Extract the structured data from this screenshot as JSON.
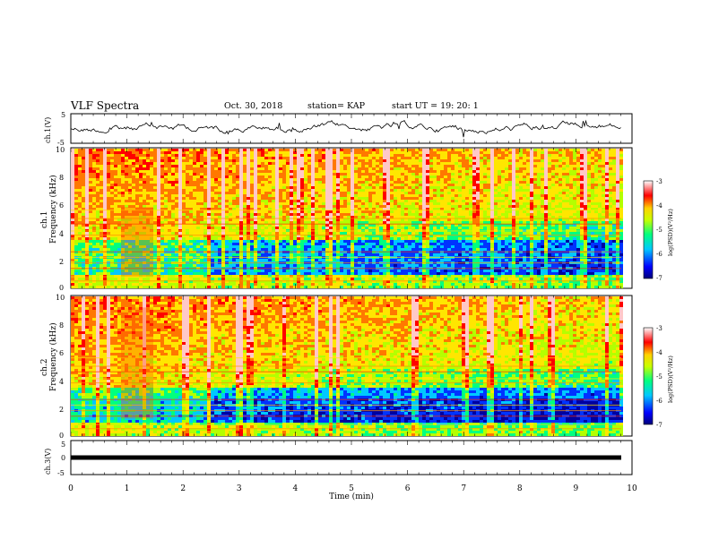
{
  "header": {
    "title": "VLF Spectra",
    "date": "Oct. 30, 2018",
    "station": "station= KAP",
    "start": "start  UT =    19: 20: 1"
  },
  "chart_data": [
    {
      "type": "line",
      "panel": "ch1-waveform",
      "ylabel": "ch.1(V)",
      "ylim": [
        -5,
        5
      ],
      "yticks": [
        "5",
        "-5"
      ],
      "xlim": [
        0,
        10
      ],
      "note_series": "noisy waveform about 0 V spanning the panel"
    },
    {
      "type": "heatmap",
      "panel": "ch1-spectrogram",
      "ylabel": "ch.1\nFrequency (kHz)",
      "xlim": [
        0,
        10
      ],
      "ylim": [
        0,
        10
      ],
      "yticks": [
        "0",
        "2",
        "4",
        "6",
        "8",
        "10"
      ],
      "colorbar": {
        "label": "log(PSD)(V²/Hz)",
        "range": [
          -7,
          -3
        ],
        "ticks": [
          "-3",
          "-4",
          "-5",
          "-6",
          "-7"
        ]
      }
    },
    {
      "type": "heatmap",
      "panel": "ch2-spectrogram",
      "ylabel": "ch.2\nFrequency (kHz)",
      "xlim": [
        0,
        10
      ],
      "ylim": [
        0,
        10
      ],
      "yticks": [
        "0",
        "2",
        "4",
        "6",
        "8",
        "10"
      ],
      "colorbar": {
        "label": "log(PSD)(V²/Hz)",
        "range": [
          -7,
          -3
        ],
        "ticks": [
          "-3",
          "-4",
          "-5",
          "-6",
          "-7"
        ]
      }
    },
    {
      "type": "line",
      "panel": "ch3-waveform",
      "ylabel": "ch.3(V)",
      "ylim": [
        -5,
        5
      ],
      "yticks": [
        "5",
        "0",
        "-5"
      ],
      "xlim": [
        0,
        10
      ],
      "series": [
        {
          "x": [
            0,
            9.8
          ],
          "y": [
            0,
            0
          ]
        }
      ]
    }
  ],
  "x_axis": {
    "label": "Time  (min)",
    "ticks": [
      "0",
      "1",
      "2",
      "3",
      "4",
      "5",
      "6",
      "7",
      "8",
      "9",
      "10"
    ]
  },
  "panel_labels": {
    "ch1_wave": "ch.1(V)",
    "ch1_spec_a": "ch.1",
    "ch1_spec_b": "Frequency (kHz)",
    "ch2_spec_a": "ch.2",
    "ch2_spec_b": "Frequency (kHz)",
    "ch3_wave": "ch.3(V)",
    "cbar": "log(PSD)(V²/Hz)"
  },
  "colors": {
    "colormap": [
      "#0000a0",
      "#0033ff",
      "#00c8ff",
      "#00ff7f",
      "#b4ff00",
      "#ffe600",
      "#ff7800",
      "#ff0000",
      "#ffc8c8"
    ]
  }
}
